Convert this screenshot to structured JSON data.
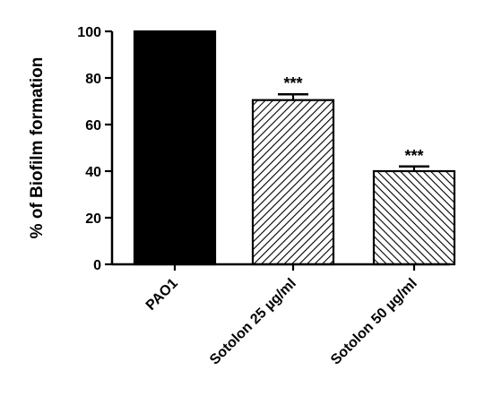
{
  "chart_data": {
    "type": "bar",
    "title": "",
    "xlabel": "",
    "ylabel": "% of Biofilm formation",
    "ylim": [
      0,
      100
    ],
    "yticks": [
      0,
      20,
      40,
      60,
      80,
      100
    ],
    "categories": [
      "PAO1",
      "Sotolon 25 µg/ml",
      "Sotolon 50 µg/ml"
    ],
    "values": [
      100,
      70.5,
      40
    ],
    "errors": [
      0,
      2.5,
      2
    ],
    "annotations": [
      "",
      "***",
      "***"
    ],
    "fills": [
      "solid",
      "hatch-forward",
      "hatch-backward"
    ],
    "bar_color": "#000000",
    "grid": false,
    "legend": "none"
  }
}
